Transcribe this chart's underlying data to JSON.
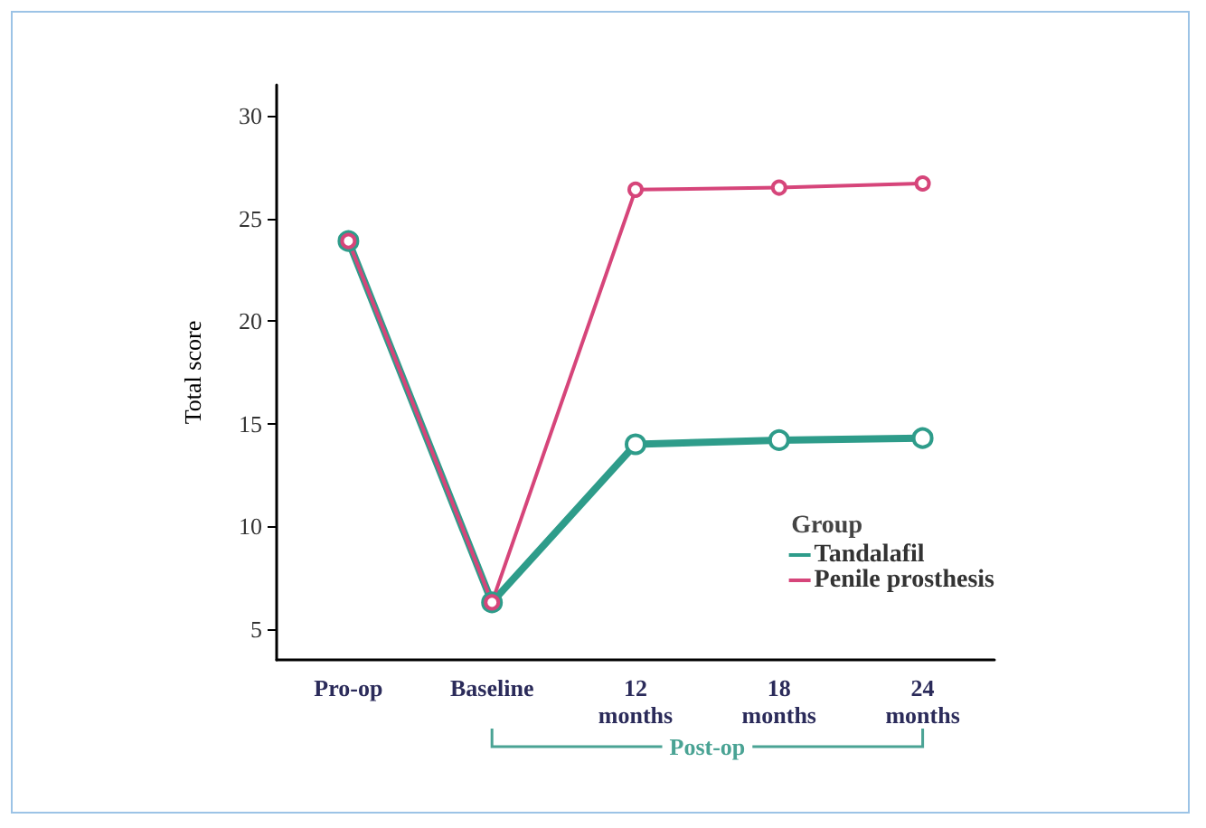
{
  "chart_data": {
    "type": "line",
    "ylabel": "Total score",
    "categories": [
      "Pro-op",
      "Baseline",
      "12\nmonths",
      "18\nmonths",
      "24\nmonths"
    ],
    "series": [
      {
        "name": "Tandalafil",
        "color": "#2e9c8a",
        "values": [
          23.9,
          6.3,
          14.0,
          14.2,
          14.3
        ]
      },
      {
        "name": "Penile prosthesis",
        "color": "#d6457a",
        "values": [
          23.9,
          6.3,
          26.4,
          26.5,
          26.7
        ]
      }
    ],
    "ylim": [
      3.5,
      31.5
    ],
    "yticks": [
      5,
      10,
      15,
      20,
      25,
      30
    ],
    "legend_title": "Group",
    "legend": "bottom right",
    "grid": false,
    "marker": "circle",
    "line_style": "solid",
    "annotations": [
      "Post-op"
    ]
  }
}
